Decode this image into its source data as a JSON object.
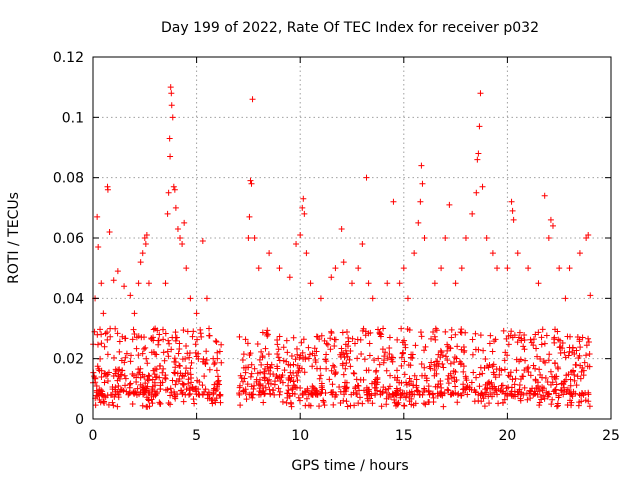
{
  "chart_data": {
    "type": "scatter",
    "title": "Day 199 of 2022, Rate Of TEC Index for receiver p032",
    "xlabel": "GPS time / hours",
    "ylabel": "ROTI / TECUs",
    "xlim": [
      0,
      25
    ],
    "ylim": [
      0,
      0.12
    ],
    "x_ticks": [
      "0",
      "5",
      "10",
      "15",
      "20",
      "25"
    ],
    "y_ticks": [
      "0",
      "0.02",
      "0.04",
      "0.06",
      "0.08",
      "0.1",
      "0.12"
    ],
    "grid": true,
    "marker": "plus",
    "color": "#ff0000",
    "series": [
      {
        "points": [
          [
            0.0,
            0.012
          ],
          [
            0.1,
            0.04
          ],
          [
            0.2,
            0.067
          ],
          [
            0.25,
            0.057
          ],
          [
            0.4,
            0.045
          ],
          [
            0.5,
            0.035
          ],
          [
            0.7,
            0.077
          ],
          [
            0.72,
            0.076
          ],
          [
            0.8,
            0.062
          ],
          [
            1.0,
            0.046
          ],
          [
            1.2,
            0.049
          ],
          [
            1.5,
            0.044
          ],
          [
            1.8,
            0.041
          ],
          [
            2.0,
            0.035
          ],
          [
            2.2,
            0.045
          ],
          [
            2.3,
            0.052
          ],
          [
            2.4,
            0.055
          ],
          [
            2.5,
            0.06
          ],
          [
            2.55,
            0.058
          ],
          [
            2.6,
            0.061
          ],
          [
            2.7,
            0.045
          ],
          [
            3.0,
            0.03
          ],
          [
            3.2,
            0.028
          ],
          [
            3.5,
            0.045
          ],
          [
            3.6,
            0.068
          ],
          [
            3.65,
            0.075
          ],
          [
            3.7,
            0.093
          ],
          [
            3.72,
            0.087
          ],
          [
            3.75,
            0.11
          ],
          [
            3.78,
            0.108
          ],
          [
            3.8,
            0.104
          ],
          [
            3.85,
            0.1
          ],
          [
            3.9,
            0.077
          ],
          [
            3.95,
            0.076
          ],
          [
            4.0,
            0.07
          ],
          [
            4.1,
            0.063
          ],
          [
            4.2,
            0.06
          ],
          [
            4.3,
            0.058
          ],
          [
            4.4,
            0.065
          ],
          [
            4.5,
            0.05
          ],
          [
            4.7,
            0.04
          ],
          [
            5.0,
            0.035
          ],
          [
            5.3,
            0.059
          ],
          [
            5.5,
            0.04
          ],
          [
            5.6,
            0.03
          ],
          [
            5.8,
            0.02
          ],
          [
            6.0,
            0.02
          ],
          [
            7.5,
            0.06
          ],
          [
            7.55,
            0.067
          ],
          [
            7.6,
            0.079
          ],
          [
            7.65,
            0.078
          ],
          [
            7.7,
            0.106
          ],
          [
            7.8,
            0.06
          ],
          [
            8.0,
            0.05
          ],
          [
            8.5,
            0.055
          ],
          [
            9.0,
            0.05
          ],
          [
            9.5,
            0.047
          ],
          [
            9.8,
            0.058
          ],
          [
            10.0,
            0.061
          ],
          [
            10.1,
            0.07
          ],
          [
            10.15,
            0.073
          ],
          [
            10.2,
            0.068
          ],
          [
            10.3,
            0.055
          ],
          [
            10.5,
            0.045
          ],
          [
            11.0,
            0.04
          ],
          [
            11.5,
            0.047
          ],
          [
            11.7,
            0.05
          ],
          [
            12.0,
            0.063
          ],
          [
            12.1,
            0.052
          ],
          [
            12.5,
            0.045
          ],
          [
            12.8,
            0.05
          ],
          [
            13.0,
            0.058
          ],
          [
            13.2,
            0.08
          ],
          [
            13.3,
            0.045
          ],
          [
            13.5,
            0.04
          ],
          [
            14.0,
            0.03
          ],
          [
            14.2,
            0.045
          ],
          [
            14.5,
            0.072
          ],
          [
            14.8,
            0.045
          ],
          [
            15.0,
            0.05
          ],
          [
            15.2,
            0.04
          ],
          [
            15.5,
            0.055
          ],
          [
            15.7,
            0.065
          ],
          [
            15.8,
            0.072
          ],
          [
            15.85,
            0.084
          ],
          [
            15.9,
            0.078
          ],
          [
            16.0,
            0.06
          ],
          [
            16.5,
            0.045
          ],
          [
            16.8,
            0.05
          ],
          [
            17.0,
            0.06
          ],
          [
            17.2,
            0.071
          ],
          [
            17.5,
            0.045
          ],
          [
            17.8,
            0.05
          ],
          [
            18.0,
            0.06
          ],
          [
            18.3,
            0.068
          ],
          [
            18.5,
            0.075
          ],
          [
            18.55,
            0.086
          ],
          [
            18.6,
            0.088
          ],
          [
            18.65,
            0.097
          ],
          [
            18.7,
            0.108
          ],
          [
            18.8,
            0.077
          ],
          [
            19.0,
            0.06
          ],
          [
            19.3,
            0.055
          ],
          [
            19.5,
            0.05
          ],
          [
            20.0,
            0.05
          ],
          [
            20.2,
            0.072
          ],
          [
            20.25,
            0.069
          ],
          [
            20.3,
            0.066
          ],
          [
            20.5,
            0.055
          ],
          [
            21.0,
            0.05
          ],
          [
            21.5,
            0.045
          ],
          [
            21.8,
            0.074
          ],
          [
            22.0,
            0.06
          ],
          [
            22.1,
            0.066
          ],
          [
            22.2,
            0.064
          ],
          [
            22.5,
            0.05
          ],
          [
            22.8,
            0.04
          ],
          [
            23.0,
            0.05
          ],
          [
            23.5,
            0.055
          ],
          [
            23.8,
            0.06
          ],
          [
            23.9,
            0.061
          ],
          [
            24.0,
            0.041
          ]
        ],
        "band": {
          "x_start": 0,
          "x_end": 24,
          "gap": [
            6.2,
            7.0
          ],
          "floor": 0.004,
          "typical_low": 0.008,
          "typical_high": 0.03,
          "density": 1400
        }
      }
    ]
  }
}
